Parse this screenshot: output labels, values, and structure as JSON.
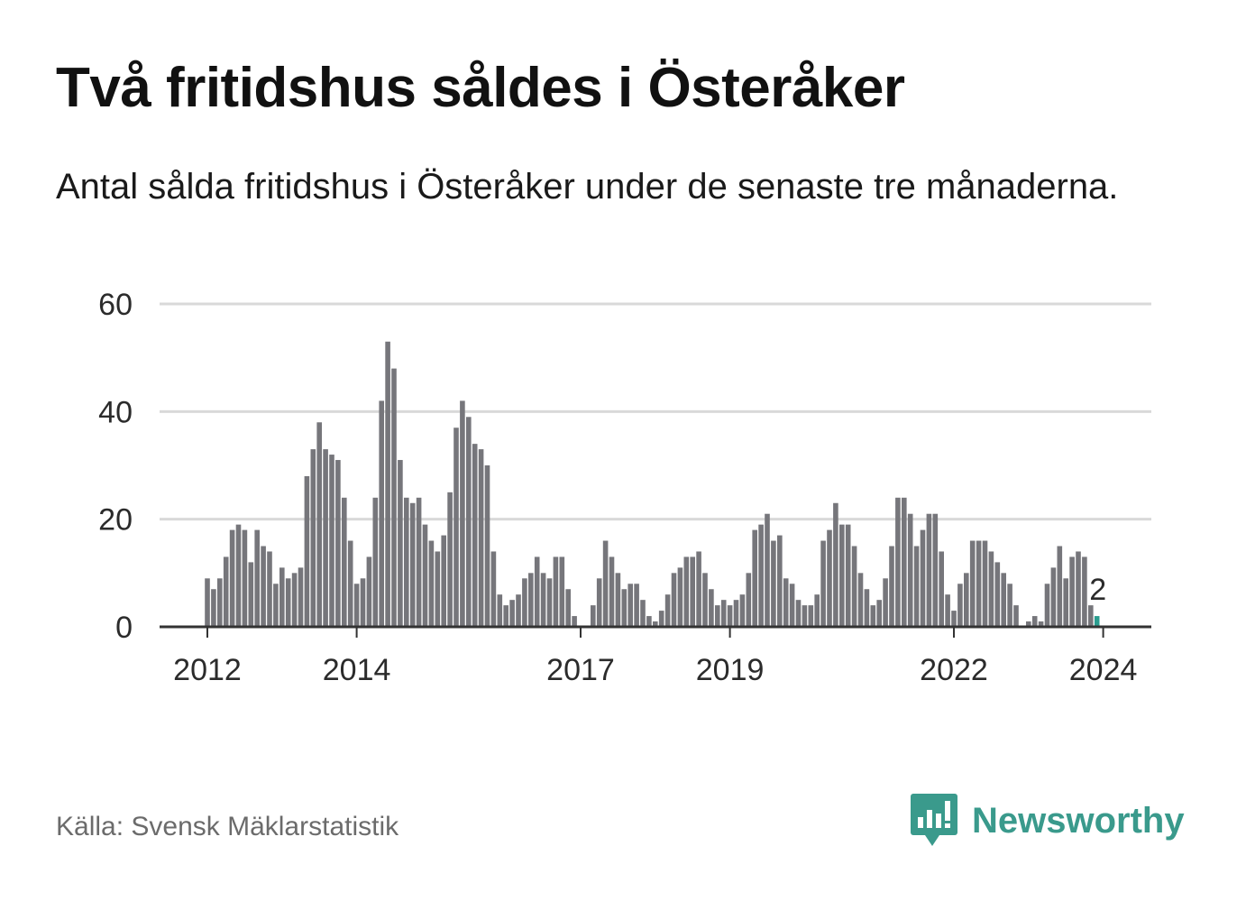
{
  "title": "Två fritidshus såldes i Österåker",
  "subtitle": "Antal sålda fritidshus i Österåker under de senaste tre månaderna.",
  "source": "Källa: Svensk Mäklarstatistik",
  "brand": "Newsworthy",
  "colors": {
    "bar": "#76767b",
    "highlight": "#2a9d8f",
    "grid": "#d9d9d9",
    "axis": "#333333",
    "brand": "#3a9a8c"
  },
  "chart_data": {
    "type": "bar",
    "title": "Två fritidshus såldes i Österåker",
    "xlabel": "",
    "ylabel": "",
    "ylim": [
      0,
      60
    ],
    "yticks": [
      0,
      20,
      40,
      60
    ],
    "start": "2012-01",
    "xtick_labels": [
      "2012",
      "2014",
      "2017",
      "2019",
      "2022",
      "2024"
    ],
    "xtick_month_index": [
      0,
      24,
      60,
      84,
      120,
      144
    ],
    "values": [
      9,
      7,
      9,
      13,
      18,
      19,
      18,
      12,
      18,
      15,
      14,
      8,
      11,
      9,
      10,
      11,
      28,
      33,
      38,
      33,
      32,
      31,
      24,
      16,
      8,
      9,
      13,
      24,
      42,
      53,
      48,
      31,
      24,
      23,
      24,
      19,
      16,
      14,
      17,
      25,
      37,
      42,
      39,
      34,
      33,
      30,
      14,
      6,
      4,
      5,
      6,
      9,
      10,
      13,
      10,
      9,
      13,
      13,
      7,
      2,
      0,
      0,
      4,
      9,
      16,
      13,
      10,
      7,
      8,
      8,
      5,
      2,
      1,
      3,
      6,
      10,
      11,
      13,
      13,
      14,
      10,
      7,
      4,
      5,
      4,
      5,
      6,
      10,
      18,
      19,
      21,
      16,
      17,
      9,
      8,
      5,
      4,
      4,
      6,
      16,
      18,
      23,
      19,
      19,
      15,
      10,
      7,
      4,
      5,
      9,
      15,
      24,
      24,
      21,
      15,
      18,
      21,
      21,
      14,
      6,
      3,
      8,
      10,
      16,
      16,
      16,
      14,
      12,
      10,
      8,
      4,
      0,
      1,
      2,
      1,
      8,
      11,
      15,
      9,
      13,
      14,
      13,
      4,
      2
    ],
    "highlight_index": 143,
    "annotation": "2"
  }
}
